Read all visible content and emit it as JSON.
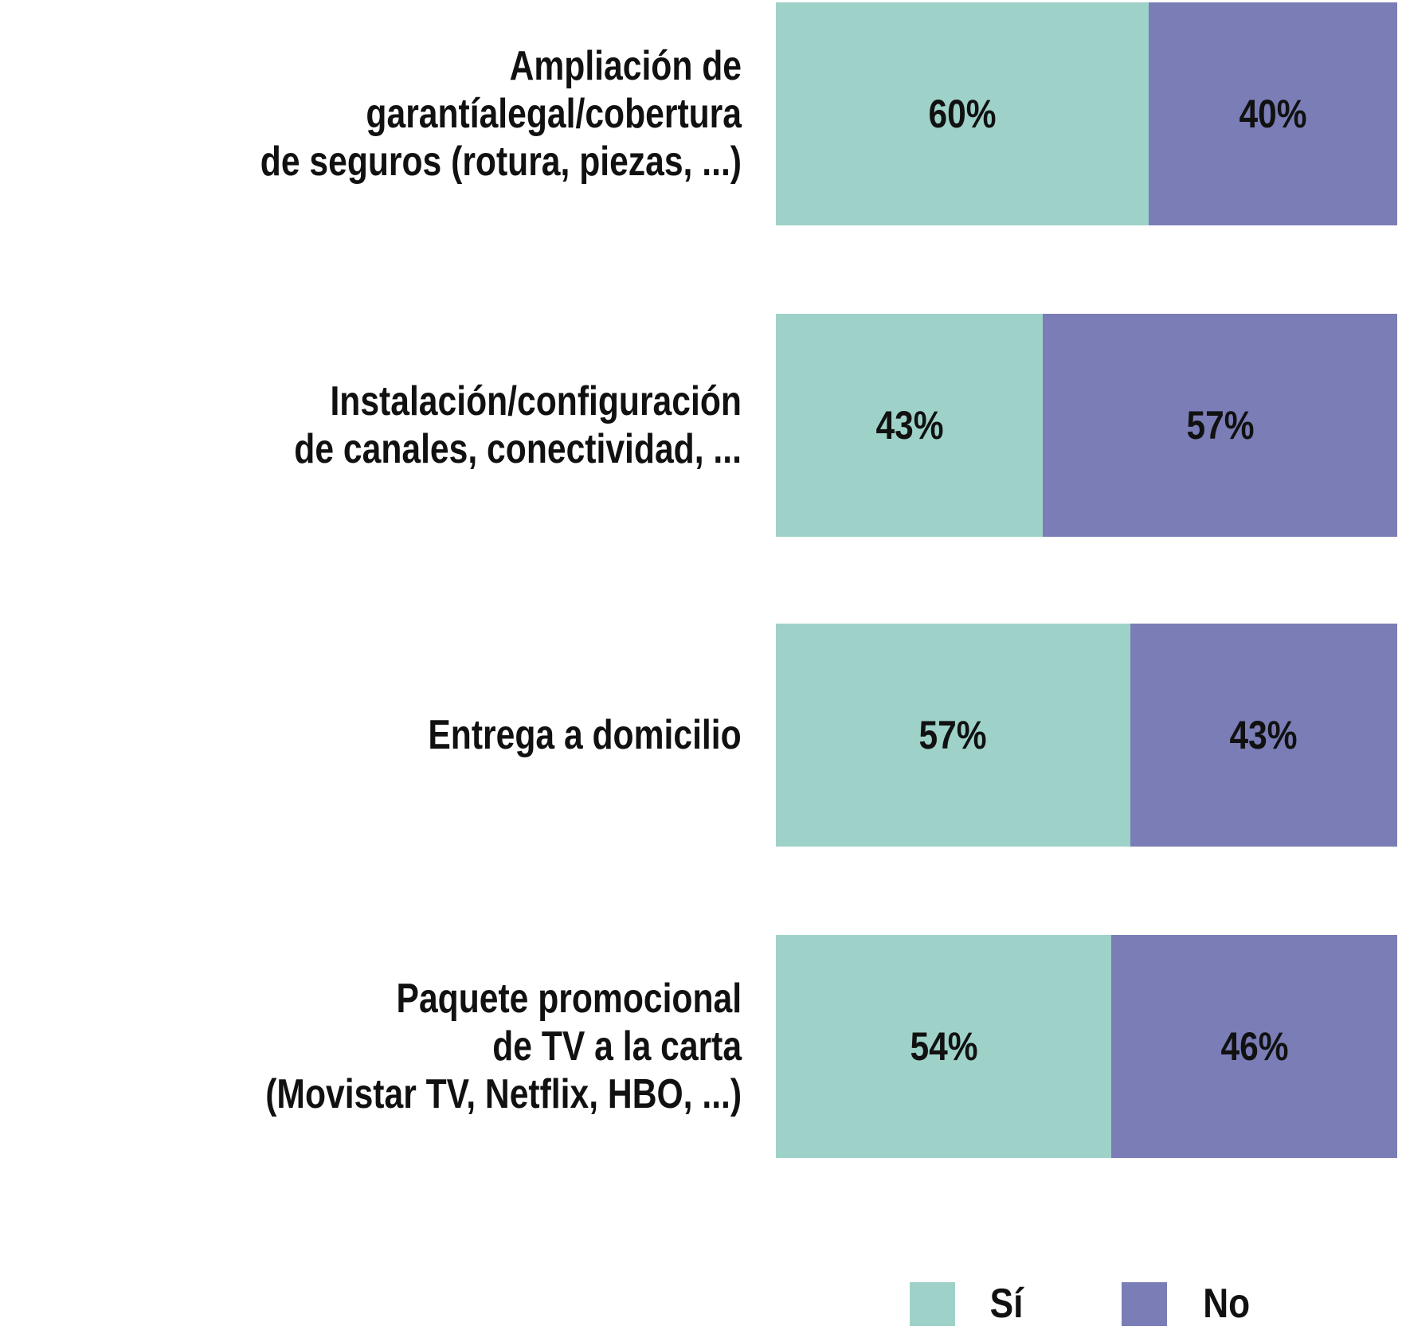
{
  "chart_data": {
    "type": "bar",
    "orientation": "horizontal",
    "stacked": true,
    "categories": [
      "Ampliación de garantíalegal/cobertura\nde seguros (rotura, piezas, ...)",
      "Instalación/configuración\nde canales, conectividad, ...",
      "Entrega a domicilio",
      "Paquete promocional\nde TV a la carta\n(Movistar TV, Netflix, HBO, ...)"
    ],
    "series": [
      {
        "name": "Sí",
        "color": "#9ed2c8",
        "values": [
          60,
          43,
          57,
          54
        ],
        "labels": [
          "60%",
          "43%",
          "57%",
          "54%"
        ]
      },
      {
        "name": "No",
        "color": "#7a7db6",
        "values": [
          40,
          57,
          43,
          46
        ],
        "labels": [
          "40%",
          "57%",
          "43%",
          "46%"
        ]
      }
    ],
    "xlim": [
      0,
      100
    ],
    "unit": "%",
    "grid": false,
    "legend": "bottom-right"
  }
}
